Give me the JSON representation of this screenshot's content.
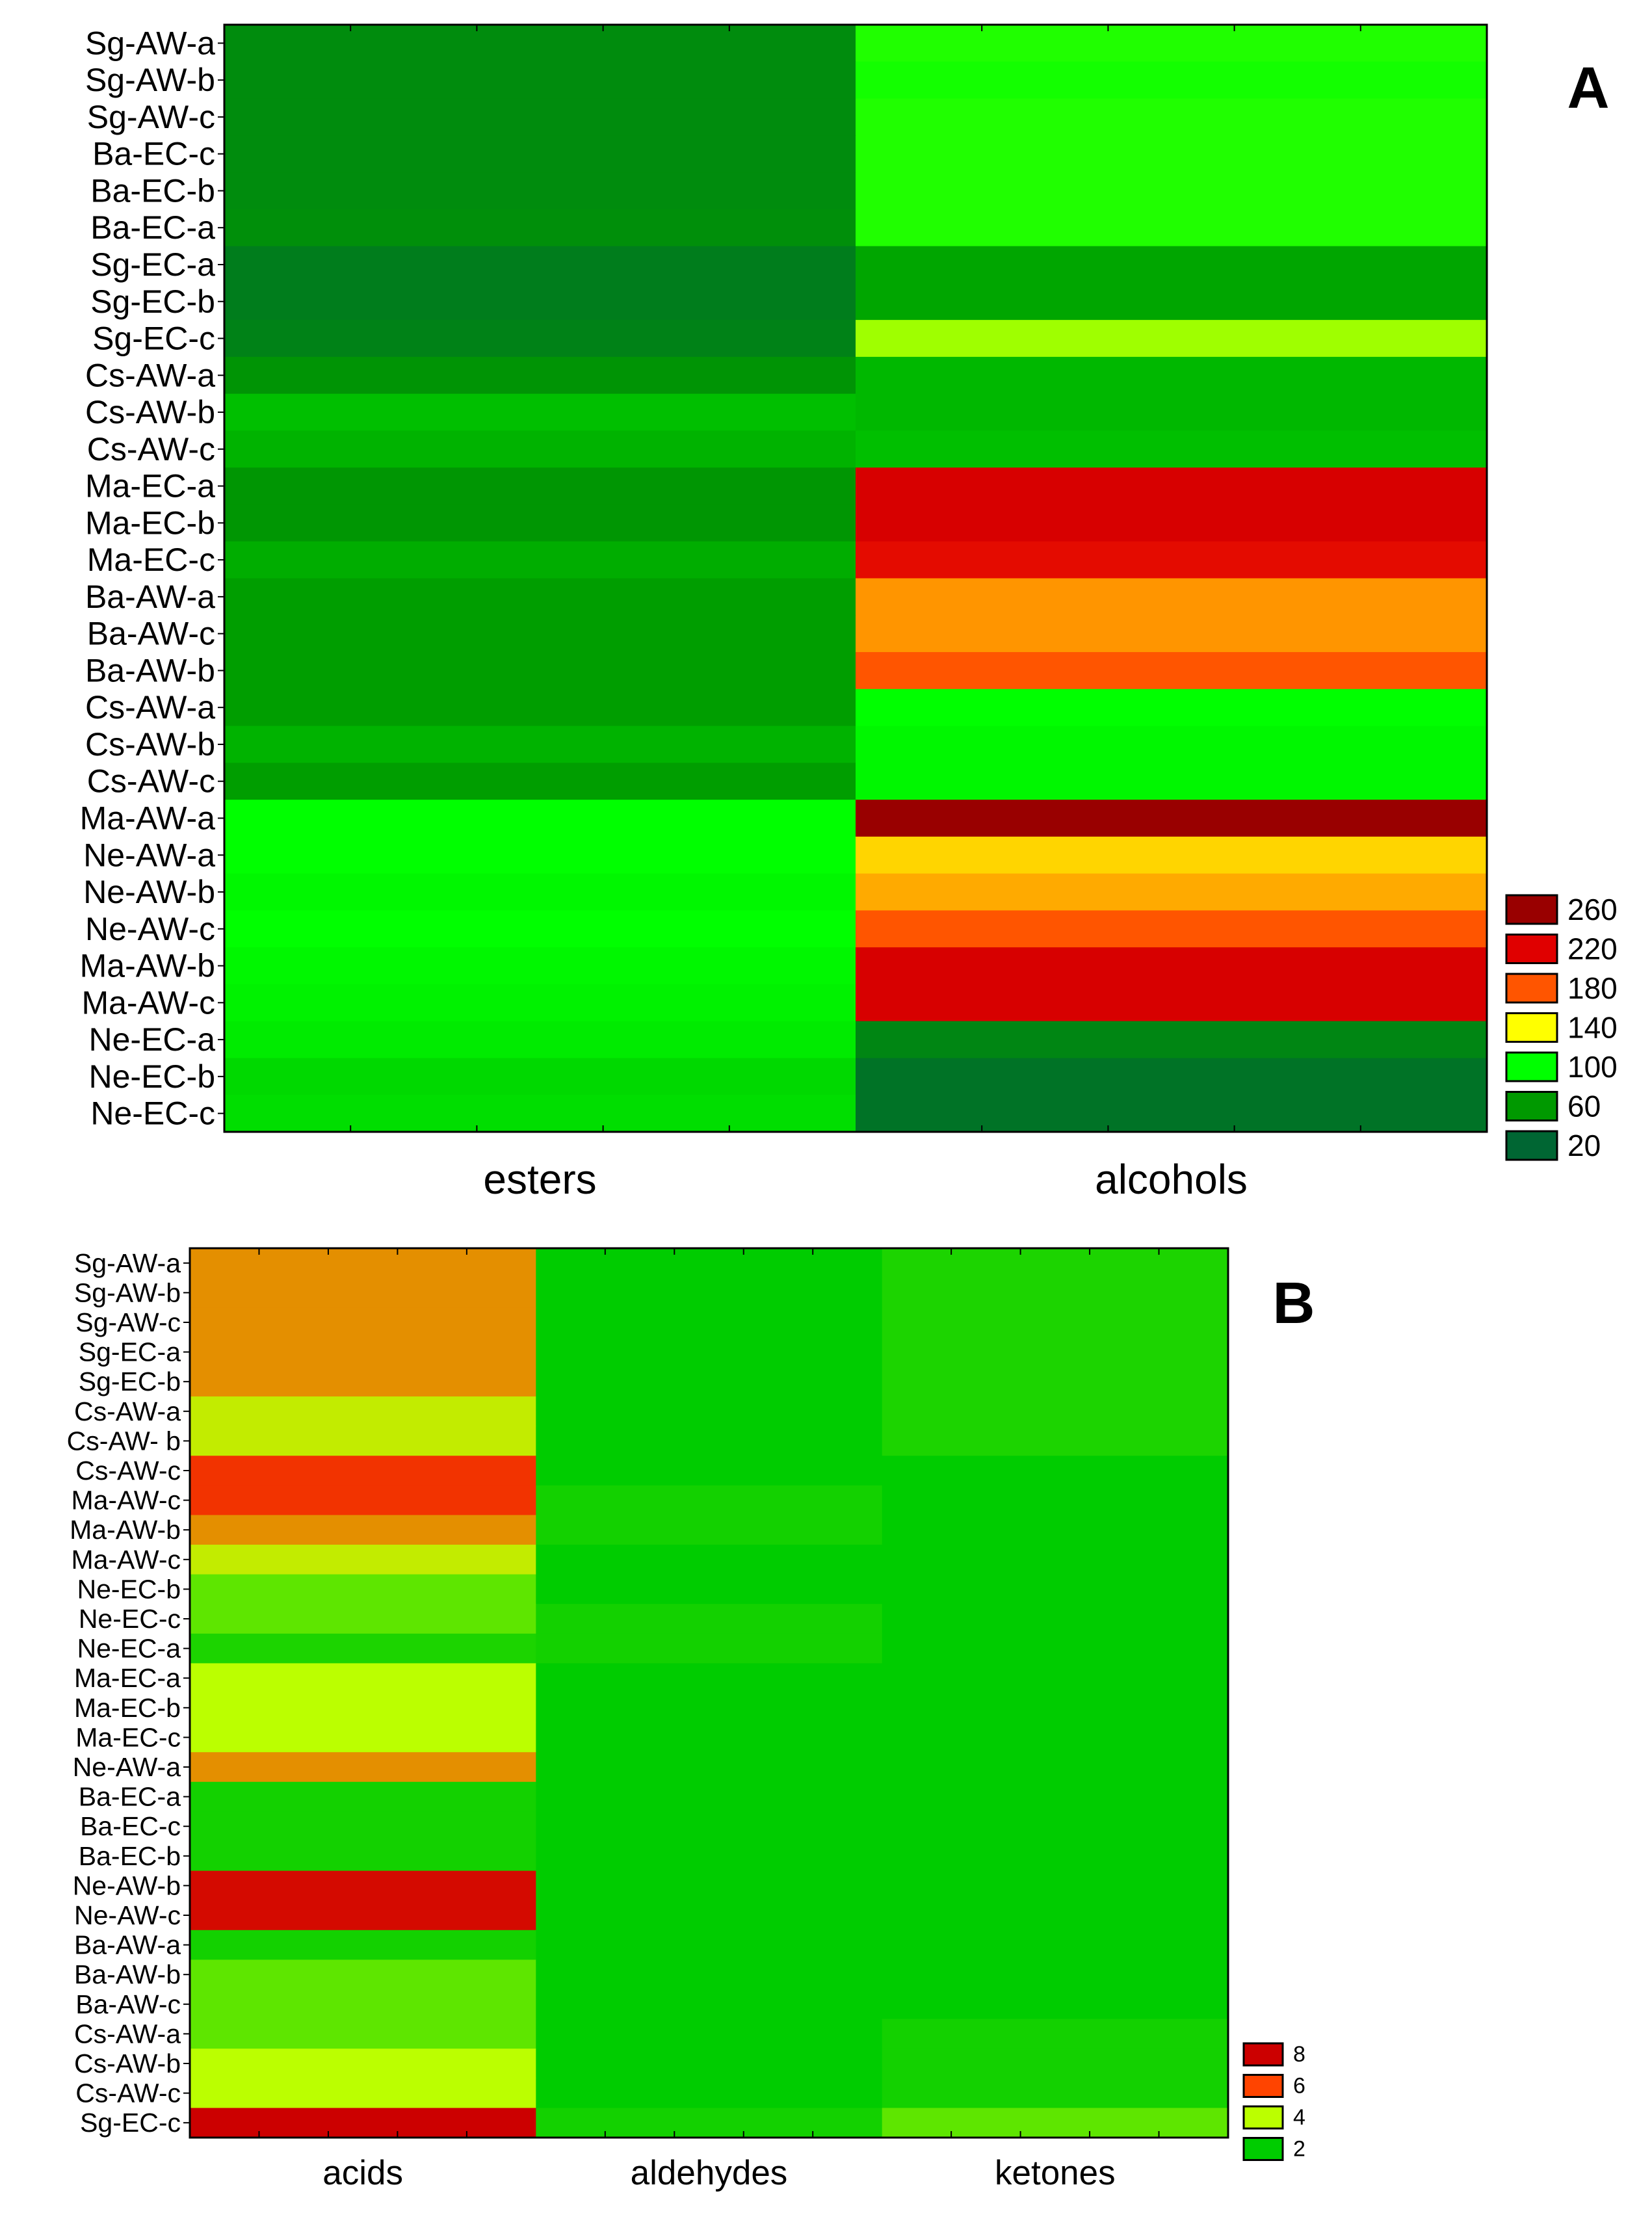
{
  "chart_data": [
    {
      "type": "heatmap",
      "panel_label": "A",
      "columns": [
        "esters",
        "alcohols"
      ],
      "rows": [
        "Sg-AW-a",
        "Sg-AW-b",
        "Sg-AW-c",
        "Ba-EC-c",
        "Ba-EC-b",
        "Ba-EC-a",
        "Sg-EC-a",
        "Sg-EC-b",
        "Sg-EC-c",
        "Cs-AW-a",
        "Cs-AW-b",
        "Cs-AW-c",
        "Ma-EC-a",
        "Ma-EC-b",
        "Ma-EC-c",
        "Ba-AW-a",
        "Ba-AW-c",
        "Ba-AW-b",
        "Cs-AW-a",
        "Cs-AW-b",
        "Cs-AW-c",
        "Ma-AW-a",
        "Ne-AW-a",
        "Ne-AW-b",
        "Ne-AW-c",
        "Ma-AW-b",
        "Ma-AW-c",
        "Ne-EC-a",
        "Ne-EC-b",
        "Ne-EC-c"
      ],
      "values": [
        [
          50,
          105
        ],
        [
          50,
          103
        ],
        [
          50,
          105
        ],
        [
          50,
          105
        ],
        [
          50,
          105
        ],
        [
          52,
          105
        ],
        [
          38,
          65
        ],
        [
          38,
          65
        ],
        [
          42,
          125
        ],
        [
          56,
          72
        ],
        [
          75,
          72
        ],
        [
          70,
          75
        ],
        [
          58,
          225
        ],
        [
          58,
          225
        ],
        [
          68,
          215
        ],
        [
          62,
          165
        ],
        [
          62,
          165
        ],
        [
          62,
          180
        ],
        [
          62,
          100
        ],
        [
          70,
          97
        ],
        [
          62,
          97
        ],
        [
          100,
          265
        ],
        [
          100,
          150
        ],
        [
          97,
          160
        ],
        [
          100,
          180
        ],
        [
          97,
          225
        ],
        [
          95,
          225
        ],
        [
          92,
          45
        ],
        [
          85,
          30
        ],
        [
          87,
          30
        ]
      ],
      "legend": [
        {
          "label": "260",
          "color": "#990000"
        },
        {
          "label": "220",
          "color": "#e00000"
        },
        {
          "label": "180",
          "color": "#ff5500"
        },
        {
          "label": "140",
          "color": "#ffff00"
        },
        {
          "label": "100",
          "color": "#00ff00"
        },
        {
          "label": "60",
          "color": "#009900"
        },
        {
          "label": "20",
          "color": "#006633"
        }
      ]
    },
    {
      "type": "heatmap",
      "panel_label": "B",
      "columns": [
        "acids",
        "aldehydes",
        "ketones"
      ],
      "rows": [
        "Sg-AW-a",
        "Sg-AW-b",
        "Sg-AW-c",
        "Sg-EC-a",
        "Sg-EC-b",
        "Cs-AW-a",
        "Cs-AW- b",
        "Cs-AW-c",
        "Ma-AW-c",
        "Ma-AW-b",
        "Ma-AW-c",
        "Ne-EC-b",
        "Ne-EC-c",
        "Ne-EC-a",
        "Ma-EC-a",
        "Ma-EC-b",
        "Ma-EC-c",
        "Ne-AW-a",
        "Ba-EC-a",
        "Ba-EC-c",
        "Ba-EC-b",
        "Ne-AW-b",
        "Ne-AW-c",
        "Ba-AW-a",
        "Ba-AW-b",
        "Ba-AW-c",
        "Cs-AW-a",
        "Cs-AW-b",
        "Cs-AW-c",
        "Sg-EC-c"
      ],
      "values": [
        [
          5.2,
          1.2,
          2.3
        ],
        [
          5.2,
          1.2,
          2.3
        ],
        [
          5.2,
          1.2,
          2.3
        ],
        [
          5.2,
          1.2,
          2.3
        ],
        [
          5.2,
          1.2,
          2.3
        ],
        [
          4.2,
          1.2,
          2.3
        ],
        [
          4.2,
          1.2,
          2.3
        ],
        [
          6.5,
          1.2,
          1.2
        ],
        [
          6.5,
          2.2,
          1.2
        ],
        [
          5.2,
          2.2,
          1.2
        ],
        [
          4.2,
          1.2,
          1.2
        ],
        [
          3.0,
          1.2,
          1.2
        ],
        [
          3.0,
          2.2,
          1.2
        ],
        [
          2.3,
          2.2,
          1.2
        ],
        [
          4.0,
          1.2,
          1.2
        ],
        [
          4.0,
          1.2,
          1.2
        ],
        [
          4.0,
          1.2,
          1.2
        ],
        [
          5.2,
          1.2,
          1.2
        ],
        [
          2.2,
          1.2,
          1.2
        ],
        [
          2.2,
          1.2,
          1.2
        ],
        [
          2.2,
          1.2,
          1.2
        ],
        [
          7.7,
          1.2,
          1.2
        ],
        [
          7.7,
          1.2,
          1.2
        ],
        [
          2.2,
          1.2,
          1.2
        ],
        [
          3.0,
          1.2,
          1.2
        ],
        [
          3.0,
          1.2,
          1.2
        ],
        [
          3.0,
          1.2,
          2.2
        ],
        [
          4.0,
          1.2,
          2.2
        ],
        [
          4.0,
          1.2,
          2.2
        ],
        [
          8.5,
          2.2,
          3.0
        ]
      ],
      "legend": [
        {
          "label": "8",
          "color": "#cc0000"
        },
        {
          "label": "6",
          "color": "#ff4400"
        },
        {
          "label": "4",
          "color": "#bbff00"
        },
        {
          "label": "2",
          "color": "#00cc00"
        }
      ]
    }
  ]
}
